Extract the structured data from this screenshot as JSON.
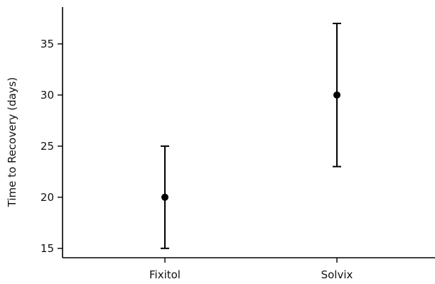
{
  "chart_data": {
    "type": "scatter",
    "title": "",
    "xlabel": "",
    "ylabel": "Time to Recovery (days)",
    "ylim": [
      14.5,
      38.6
    ],
    "y_ticks": [
      15,
      20,
      25,
      30,
      35
    ],
    "grid": false,
    "categories": [
      "Fixitol",
      "Solvix"
    ],
    "points": [
      {
        "category": "Fixitol",
        "mean": 20,
        "lower": 15,
        "upper": 25
      },
      {
        "category": "Solvix",
        "mean": 30,
        "lower": 23,
        "upper": 37
      }
    ]
  }
}
